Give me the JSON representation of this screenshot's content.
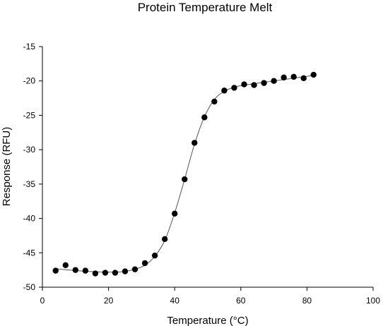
{
  "chart_data": {
    "type": "scatter",
    "title": "Protein Temperature Melt",
    "xlabel": "Temperature (°C)",
    "ylabel": "Response (RFU)",
    "xlim": [
      0,
      100
    ],
    "ylim": [
      -50,
      -15
    ],
    "x_ticks": [
      0,
      20,
      40,
      60,
      80,
      100
    ],
    "y_ticks": [
      -50,
      -45,
      -40,
      -35,
      -30,
      -25,
      -20,
      -15
    ],
    "grid": false,
    "legend": "none",
    "colors": {
      "points": "#000000",
      "fit_line": "#555555",
      "axes": "#000000"
    },
    "series": [
      {
        "kind": "points",
        "marker": "filled-circle",
        "x": [
          4,
          7,
          10,
          13,
          16,
          19,
          22,
          25,
          28,
          31,
          34,
          37,
          40,
          43,
          46,
          49,
          52,
          55,
          58,
          61,
          64,
          67,
          70,
          73,
          76,
          79,
          82
        ],
        "y": [
          -47.6,
          -46.8,
          -47.5,
          -47.6,
          -48.0,
          -47.9,
          -47.9,
          -47.7,
          -47.4,
          -46.5,
          -45.4,
          -43.0,
          -39.3,
          -34.3,
          -29.0,
          -25.3,
          -23.0,
          -21.4,
          -21.0,
          -20.5,
          -20.6,
          -20.3,
          -20.0,
          -19.5,
          -19.4,
          -19.6,
          -19.1
        ]
      },
      {
        "kind": "fit",
        "style": "thin-smooth-line",
        "x": [
          4,
          8,
          12,
          16,
          20,
          24,
          28,
          31,
          34,
          37,
          40,
          43,
          46,
          49,
          52,
          55,
          58,
          61,
          64,
          67,
          70,
          73,
          76,
          79,
          82
        ],
        "y": [
          -47.3,
          -47.5,
          -47.65,
          -47.75,
          -47.8,
          -47.75,
          -47.4,
          -46.8,
          -45.5,
          -43.2,
          -39.2,
          -34.3,
          -29.2,
          -25.2,
          -22.7,
          -21.5,
          -20.9,
          -20.6,
          -20.4,
          -20.2,
          -20.0,
          -19.8,
          -19.6,
          -19.4,
          -19.2
        ]
      }
    ]
  }
}
